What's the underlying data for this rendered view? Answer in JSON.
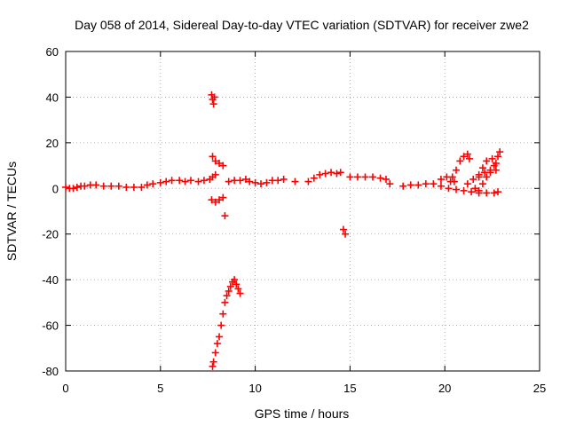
{
  "chart_data": {
    "type": "scatter",
    "title": "Day 058 of 2014, Sidereal Day-to-day VTEC variation (SDTVAR) for receiver zwe2",
    "xlabel": "GPS time / hours",
    "ylabel": "SDTVAR / TECUs",
    "xlim": [
      0,
      25
    ],
    "ylim": [
      -80,
      60
    ],
    "xticks": [
      0,
      5,
      10,
      15,
      20,
      25
    ],
    "yticks": [
      -80,
      -60,
      -40,
      -20,
      0,
      20,
      40,
      60
    ],
    "grid": true,
    "marker": "+",
    "color": "#ff0000",
    "series": [
      {
        "name": "zwe2",
        "x": [
          0.0,
          0.2,
          0.4,
          0.6,
          0.8,
          1.0,
          1.3,
          1.6,
          2.0,
          2.4,
          2.8,
          3.2,
          3.6,
          4.0,
          4.3,
          4.6,
          5.0,
          5.3,
          5.6,
          6.0,
          6.3,
          6.6,
          7.0,
          7.3,
          7.6,
          7.75,
          7.9,
          7.7,
          7.75,
          7.8,
          7.85,
          7.75,
          7.9,
          8.1,
          8.3,
          7.7,
          7.9,
          8.1,
          8.3,
          8.4,
          7.75,
          7.8,
          7.9,
          8.0,
          8.1,
          8.2,
          8.3,
          8.4,
          8.5,
          8.6,
          8.7,
          8.8,
          8.9,
          9.0,
          9.1,
          9.2,
          8.6,
          8.9,
          9.2,
          9.5,
          9.7,
          10.0,
          10.3,
          10.6,
          10.9,
          11.2,
          11.5,
          12.1,
          12.8,
          13.1,
          13.4,
          13.7,
          14.0,
          14.3,
          14.5,
          14.65,
          14.75,
          15.0,
          15.4,
          15.8,
          16.2,
          16.6,
          16.9,
          17.1,
          17.8,
          18.2,
          18.6,
          19.0,
          19.4,
          19.8,
          20.2,
          20.6,
          21.0,
          21.4,
          21.8,
          22.2,
          22.6,
          22.8,
          20.4,
          20.6,
          20.8,
          21.0,
          21.2,
          21.3,
          21.6,
          21.8,
          22.0,
          22.2,
          22.5,
          22.8,
          21.8,
          22.0,
          22.2,
          22.4,
          22.6,
          22.7,
          22.9,
          21.2,
          21.5,
          21.8,
          22.1,
          22.4,
          22.7,
          20.5,
          19.8,
          20.1,
          20.3
        ],
        "y": [
          0.5,
          0,
          0,
          0.5,
          1,
          1,
          1.5,
          1.5,
          1,
          1,
          1,
          0.5,
          0.5,
          0.5,
          1.5,
          2,
          2.5,
          3,
          3.5,
          3.5,
          3,
          3.5,
          3,
          3.5,
          4,
          5,
          6,
          41,
          39,
          37,
          40,
          14,
          12,
          11,
          10,
          -5,
          -6,
          -5,
          -4,
          -12,
          -78,
          -76,
          -72,
          -68,
          -65,
          -60,
          -55,
          -50,
          -47,
          -45,
          -43,
          -41,
          -40,
          -42,
          -44,
          -46,
          3,
          3.5,
          3.5,
          4,
          3,
          2.5,
          2,
          2.5,
          3.5,
          3.5,
          4,
          3,
          3,
          4.5,
          6,
          6.5,
          7,
          6.5,
          7,
          -18,
          -20,
          5,
          5,
          5,
          5,
          4.5,
          4,
          2,
          1,
          1.5,
          1.5,
          2,
          2,
          1,
          0,
          -0.5,
          -1,
          -1.5,
          -2,
          -2,
          -2,
          -1.5,
          5,
          8,
          12,
          14,
          15,
          13,
          0,
          5,
          9,
          12,
          13,
          14,
          -1,
          2,
          5,
          8,
          10,
          11,
          16,
          2,
          4,
          6,
          7,
          7,
          8,
          3,
          4,
          5,
          3
        ]
      }
    ]
  }
}
